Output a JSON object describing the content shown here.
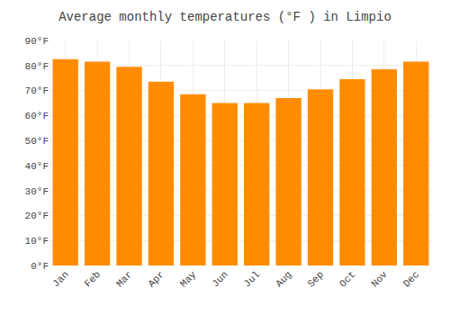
{
  "chart_data": {
    "type": "bar",
    "title": "Average monthly temperatures (°F ) in Limpio",
    "categories": [
      "Jan",
      "Feb",
      "Mar",
      "Apr",
      "May",
      "Jun",
      "Jul",
      "Aug",
      "Sep",
      "Oct",
      "Nov",
      "Dec"
    ],
    "values": [
      82.5,
      81.5,
      79.5,
      73.5,
      68.5,
      65.0,
      65.0,
      67.0,
      70.5,
      74.5,
      78.5,
      81.5
    ],
    "color": "#FF8C00",
    "ylim": [
      0,
      90
    ],
    "yticks": [
      {
        "value": 0,
        "label": "0°F"
      },
      {
        "value": 10,
        "label": "10°F"
      },
      {
        "value": 20,
        "label": "20°F"
      },
      {
        "value": 30,
        "label": "30°F"
      },
      {
        "value": 40,
        "label": "40°F"
      },
      {
        "value": 50,
        "label": "50°F"
      },
      {
        "value": 60,
        "label": "60°F"
      },
      {
        "value": 70,
        "label": "70°F"
      },
      {
        "value": 80,
        "label": "80°F"
      },
      {
        "value": 90,
        "label": "90°F"
      }
    ],
    "grid": true
  }
}
